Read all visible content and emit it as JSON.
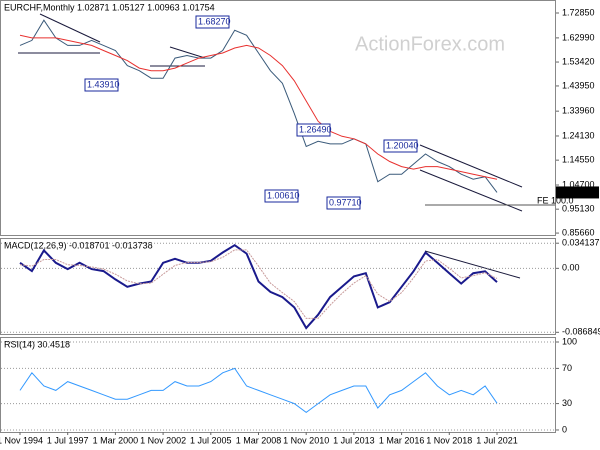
{
  "chart_data": [
    {
      "type": "line",
      "title": "EURCHF,Monthly 1.02871 1.05127 1.00963 1.01754",
      "watermark": "ActionForex.com",
      "categories": [
        "1 Nov 1994",
        null,
        null,
        null,
        "1 Jul 1997",
        null,
        null,
        null,
        "1 Mar 2000",
        null,
        null,
        null,
        "1 Nov 2002",
        null,
        null,
        null,
        "1 Jul 2005",
        null,
        null,
        null,
        "1 Mar 2008",
        null,
        null,
        null,
        "1 Nov 2010",
        null,
        null,
        null,
        "1 Jul 2013",
        null,
        null,
        null,
        "1 Mar 2016",
        null,
        null,
        null,
        "1 Nov 2018",
        null,
        null,
        null,
        "1 Jul 2021"
      ],
      "series": [
        {
          "color": "#3a5a7a",
          "values": [
            1.6,
            1.62,
            1.7,
            1.63,
            1.6,
            1.6,
            1.62,
            1.6,
            1.58,
            1.52,
            1.5,
            1.47,
            1.47,
            1.55,
            1.56,
            1.55,
            1.55,
            1.58,
            1.66,
            1.64,
            1.57,
            1.5,
            1.45,
            1.33,
            1.2,
            1.22,
            1.21,
            1.21,
            1.23,
            1.21,
            1.06,
            1.09,
            1.09,
            1.13,
            1.17,
            1.14,
            1.12,
            1.09,
            1.07,
            1.08,
            1.01754
          ]
        },
        {
          "color": "#e8312f",
          "values": [
            1.64,
            1.63,
            1.63,
            1.63,
            1.62,
            1.61,
            1.6,
            1.58,
            1.56,
            1.54,
            1.51,
            1.5,
            1.5,
            1.51,
            1.53,
            1.55,
            1.56,
            1.57,
            1.59,
            1.6,
            1.59,
            1.56,
            1.52,
            1.46,
            1.38,
            1.3,
            1.26,
            1.24,
            1.23,
            1.21,
            1.17,
            1.14,
            1.12,
            1.11,
            1.12,
            1.12,
            1.11,
            1.1,
            1.09,
            1.08,
            1.07
          ]
        }
      ],
      "ylim": [
        0.845,
        1.78
      ],
      "yticks": [
        {
          "value": 1.7285,
          "label": "1.72850"
        },
        {
          "value": 1.6299,
          "label": "1.62990"
        },
        {
          "value": 1.5342,
          "label": "1.53420"
        },
        {
          "value": 1.4395,
          "label": "1.43950"
        },
        {
          "value": 1.3396,
          "label": "1.33960"
        },
        {
          "value": 1.2413,
          "label": "1.24130"
        },
        {
          "value": 1.1455,
          "label": "1.14550"
        },
        {
          "value": 1.047,
          "label": "1.04700"
        },
        {
          "value": 0.9513,
          "label": "0.95130"
        },
        {
          "value": 0.8566,
          "label": "0.85660"
        }
      ],
      "grid": false,
      "annotations": [
        "1.68270",
        "1.43910",
        "1.26490",
        "1.00610",
        "0.97710",
        "1.20040",
        "FE 100.0"
      ],
      "last_price_label": "1.01754"
    },
    {
      "type": "line",
      "title": "MACD(12,26,9) -0.018701 -0.013738",
      "series": [
        {
          "color": "#1a1a8c",
          "values": [
            0.0075,
            -0.0038,
            0.0243,
            0.0075,
            -0.001,
            0.0075,
            -0.001,
            -0.0038,
            -0.015,
            -0.025,
            -0.0207,
            -0.0179,
            0.0075,
            0.013,
            0.0075,
            0.0075,
            0.0103,
            0.0215,
            0.0314,
            0.02,
            -0.0179,
            -0.032,
            -0.039,
            -0.053,
            -0.081,
            -0.063,
            -0.039,
            -0.025,
            -0.011,
            -0.0066,
            -0.053,
            -0.046,
            -0.025,
            -0.004,
            0.0215,
            0.0075,
            -0.0066,
            -0.0207,
            -0.0066,
            -0.004,
            -0.018701
          ]
        },
        {
          "color": "#c89a9a",
          "values": [
            0.005,
            0.003,
            0.012,
            0.012,
            0.005,
            0.004,
            0.002,
            -0.001,
            -0.008,
            -0.017,
            -0.021,
            -0.02,
            -0.008,
            0.004,
            0.008,
            0.008,
            0.009,
            0.015,
            0.025,
            0.025,
            0.003,
            -0.02,
            -0.033,
            -0.045,
            -0.068,
            -0.068,
            -0.05,
            -0.034,
            -0.02,
            -0.01,
            -0.035,
            -0.045,
            -0.033,
            -0.013,
            0.01,
            0.012,
            0.0,
            -0.013,
            -0.01,
            -0.006,
            -0.013738
          ]
        }
      ],
      "ylim": [
        -0.0905,
        0.0412
      ],
      "yticks": [
        0.034137,
        {
          "value": 0,
          "label": "0.00"
        },
        -0.086849
      ],
      "grid": true
    },
    {
      "type": "line",
      "title": "RSI(14) 30.4518",
      "series": [
        {
          "color": "#3399ff",
          "values": [
            45,
            65,
            50,
            45,
            55,
            50,
            45,
            40,
            35,
            35,
            40,
            45,
            45,
            55,
            50,
            50,
            55,
            65,
            70,
            50,
            45,
            40,
            35,
            30,
            20,
            30,
            40,
            45,
            50,
            50,
            25,
            40,
            45,
            55,
            65,
            50,
            40,
            45,
            40,
            50,
            30.4518
          ]
        }
      ],
      "ylim": [
        -2.3,
        105.7
      ],
      "yticks": [
        100,
        70,
        30,
        0
      ],
      "grid": true
    }
  ]
}
